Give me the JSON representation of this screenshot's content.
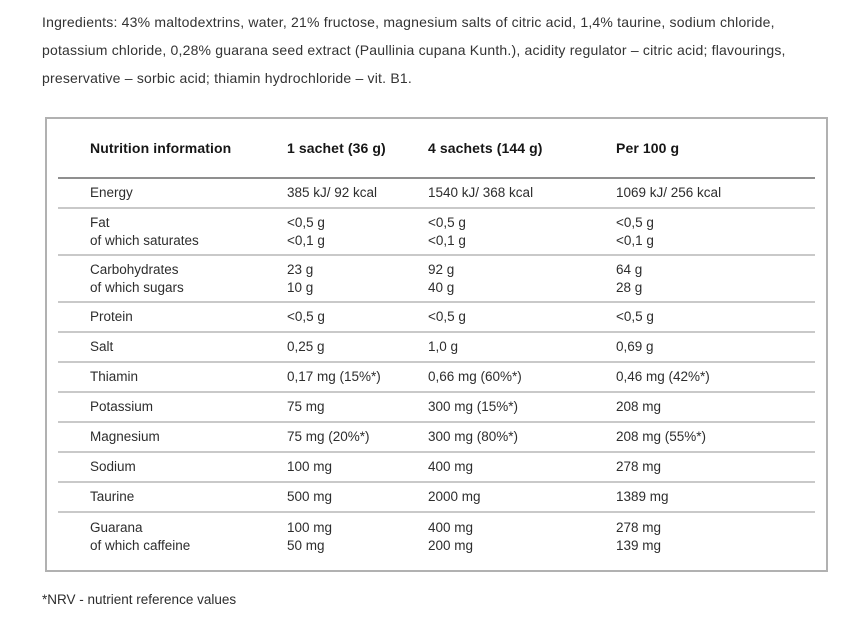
{
  "ingredients": "Ingredients: 43% maltodextrins, water, 21% fructose, magnesium salts of citric acid, 1,4% taurine, sodium chloride, potassium chloride, 0,28% guarana seed extract (Paullinia cupana Kunth.), acidity regulator – citric acid; flavourings, preservative – sorbic acid; thiamin hydrochloride – vit. B1.",
  "table": {
    "headers": [
      "Nutrition information",
      "1 sachet (36 g)",
      "4 sachets (144 g)",
      "Per 100 g"
    ],
    "rows": [
      {
        "label": "Energy",
        "values": [
          "385 kJ/ 92 kcal",
          "1540 kJ/ 368 kcal",
          "1069 kJ/ 256 kcal"
        ]
      },
      {
        "label": "Fat",
        "sublabel": "of which saturates",
        "values": [
          "<0,5 g",
          "<0,5 g",
          "<0,5 g"
        ],
        "subvalues": [
          "<0,1 g",
          "<0,1 g",
          "<0,1 g"
        ]
      },
      {
        "label": "Carbohydrates",
        "sublabel": "of which sugars",
        "values": [
          "23 g",
          "92 g",
          "64 g"
        ],
        "subvalues": [
          "10 g",
          "40 g",
          "28 g"
        ]
      },
      {
        "label": "Protein",
        "values": [
          "<0,5 g",
          "<0,5 g",
          "<0,5 g"
        ]
      },
      {
        "label": "Salt",
        "values": [
          "0,25 g",
          "1,0 g",
          "0,69 g"
        ]
      },
      {
        "label": "Thiamin",
        "values": [
          "0,17 mg (15%*)",
          "0,66 mg (60%*)",
          "0,46 mg (42%*)"
        ]
      },
      {
        "label": "Potassium",
        "values": [
          "75 mg",
          "300 mg (15%*)",
          "208 mg"
        ]
      },
      {
        "label": "Magnesium",
        "values": [
          "75 mg (20%*)",
          "300 mg (80%*)",
          "208 mg (55%*)"
        ]
      },
      {
        "label": "Sodium",
        "values": [
          "100 mg",
          "400 mg",
          "278 mg"
        ]
      },
      {
        "label": "Taurine",
        "values": [
          "500 mg",
          "2000 mg",
          "1389 mg"
        ]
      },
      {
        "label": "Guarana",
        "sublabel": "of which caffeine",
        "values": [
          "100 mg",
          "400 mg",
          "278 mg"
        ],
        "subvalues": [
          "50 mg",
          "200 mg",
          "139 mg"
        ]
      }
    ]
  },
  "footnote": "*NRV - nutrient reference values",
  "colors": {
    "panel_border": "#b1b1b1",
    "header_rule": "#8f8f8f",
    "row_rule": "#c9c9c9",
    "text": "#2d2d2d"
  }
}
